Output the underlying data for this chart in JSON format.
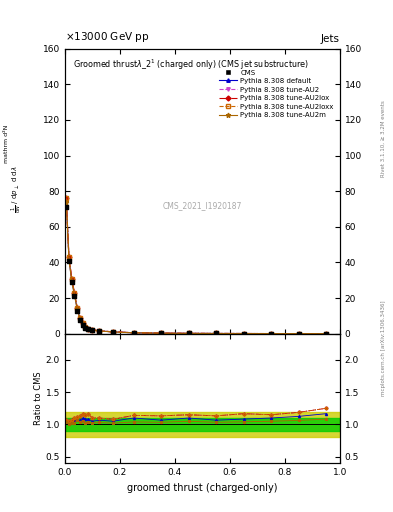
{
  "title_top": "×13000 GeV pp",
  "title_right": "Jets",
  "plot_title": "Groomed thrustλ_2¹ (charged only) (CMS jet substructure)",
  "xlabel": "groomed thrust (charged-only)",
  "ylabel_main": "mathrm d²N\nmathrm d pₜ mathrm d lambda",
  "ylabel_ratio": "Ratio to CMS",
  "watermark": "CMS_2021_I1920187",
  "right_label1": "Rivet 3.1.10, ≥ 3.2M events",
  "right_label2": "mcplots.cern.ch [arXiv:1306.3436]",
  "cms_data_x": [
    0.005,
    0.015,
    0.025,
    0.035,
    0.045,
    0.055,
    0.065,
    0.075,
    0.085,
    0.1,
    0.125,
    0.175,
    0.25,
    0.35,
    0.45,
    0.55,
    0.65,
    0.75,
    0.85,
    0.95
  ],
  "cms_data_y": [
    71,
    41,
    29,
    21,
    13,
    8,
    5,
    3.5,
    2.5,
    2.0,
    1.5,
    1.0,
    0.5,
    0.3,
    0.2,
    0.15,
    0.12,
    0.1,
    0.08,
    0.06
  ],
  "pythia_default_y": [
    75,
    42,
    30,
    22,
    14,
    8.5,
    5.5,
    3.8,
    2.7,
    2.1,
    1.6,
    1.05,
    0.55,
    0.32,
    0.22,
    0.16,
    0.13,
    0.11,
    0.09,
    0.07
  ],
  "pythia_AU2_y": [
    76,
    43,
    31,
    23,
    14.5,
    9,
    5.8,
    4.0,
    2.9,
    2.2,
    1.65,
    1.08,
    0.57,
    0.34,
    0.23,
    0.17,
    0.14,
    0.115,
    0.095,
    0.075
  ],
  "pythia_AU2lox_y": [
    76,
    43,
    31,
    23,
    14.5,
    9,
    5.8,
    4.0,
    2.9,
    2.2,
    1.65,
    1.08,
    0.57,
    0.34,
    0.23,
    0.17,
    0.14,
    0.115,
    0.095,
    0.075
  ],
  "pythia_AU2loxx_y": [
    76,
    43,
    31,
    23,
    14.5,
    9,
    5.8,
    4.0,
    2.9,
    2.2,
    1.65,
    1.08,
    0.57,
    0.34,
    0.23,
    0.17,
    0.14,
    0.115,
    0.095,
    0.075
  ],
  "pythia_AU2m_y": [
    74,
    41.5,
    29.5,
    21.5,
    13.8,
    8.3,
    5.3,
    3.6,
    2.6,
    2.05,
    1.55,
    1.02,
    0.52,
    0.31,
    0.21,
    0.155,
    0.125,
    0.105,
    0.085,
    0.065
  ],
  "ylim_main": [
    0,
    160
  ],
  "ylim_ratio": [
    0.4,
    2.4
  ],
  "xlim": [
    0,
    1
  ],
  "color_cms": "#000000",
  "color_default": "#0000cc",
  "color_AU2": "#cc44cc",
  "color_AU2lox": "#cc0000",
  "color_AU2loxx": "#cc6600",
  "color_AU2m": "#aa6600",
  "color_ratio_inner": "#00cc00",
  "color_ratio_outer": "#cccc00",
  "yticks_main": [
    0,
    20,
    40,
    60,
    80,
    100,
    120,
    140,
    160
  ],
  "yticks_ratio": [
    0.5,
    1.0,
    1.5,
    2.0
  ]
}
